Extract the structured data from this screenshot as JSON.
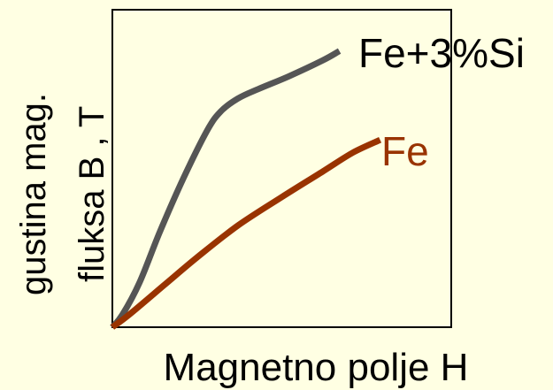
{
  "chart_data": {
    "type": "line",
    "xlabel": "Magnetno polje H",
    "ylabel_lines": [
      "gustina mag.",
      "fluksa B , T"
    ],
    "xlim": [
      0,
      1
    ],
    "ylim": [
      0,
      1
    ],
    "ticks": "none",
    "grid": false,
    "legend": "labels at line ends",
    "series": [
      {
        "name": "Fe+3%Si",
        "color": "#555555",
        "x": [
          0.0,
          0.03,
          0.08,
          0.14,
          0.21,
          0.28,
          0.32,
          0.37,
          0.43,
          0.52,
          0.62,
          0.67
        ],
        "y": [
          0.0,
          0.04,
          0.14,
          0.3,
          0.47,
          0.62,
          0.68,
          0.72,
          0.75,
          0.79,
          0.84,
          0.87
        ]
      },
      {
        "name": "Fe",
        "color": "#993300",
        "x": [
          0.0,
          0.05,
          0.15,
          0.25,
          0.37,
          0.5,
          0.62,
          0.71,
          0.79
        ],
        "y": [
          0.0,
          0.04,
          0.13,
          0.22,
          0.32,
          0.41,
          0.49,
          0.55,
          0.59
        ]
      }
    ]
  }
}
